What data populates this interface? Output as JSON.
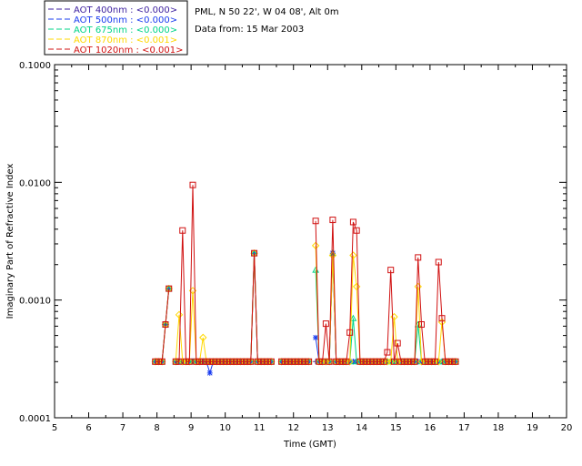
{
  "chart_data": {
    "type": "line",
    "title_lines": [
      "PML, N 50 22', W 04 08', Alt 0m",
      "Data from: 15 Mar 2003"
    ],
    "xlabel": "Time (GMT)",
    "ylabel": "Imaginary Part of Refractive Index",
    "xlim": [
      5,
      20
    ],
    "ylim": [
      0.0001,
      0.1
    ],
    "yscale": "log",
    "x_ticks": [
      5,
      6,
      7,
      8,
      9,
      10,
      11,
      12,
      13,
      14,
      15,
      16,
      17,
      18,
      19,
      20
    ],
    "x_tick_labels": [
      "5",
      "6",
      "7",
      "8",
      "9",
      "10",
      "11",
      "12",
      "13",
      "14",
      "15",
      "16",
      "17",
      "18",
      "19",
      "20"
    ],
    "y_ticks": [
      0.0001,
      0.001,
      0.01,
      0.1
    ],
    "y_tick_labels": [
      "0.0001",
      "0.0010",
      "0.0100",
      "0.1000"
    ],
    "legend": [
      {
        "label": "AOT  400nm : <0.000>",
        "color": "#3b1e9e"
      },
      {
        "label": "AOT  500nm : <0.000>",
        "color": "#1a3cf0"
      },
      {
        "label": "AOT  675nm : <0.000>",
        "color": "#00d488"
      },
      {
        "label": "AOT  870nm : <0.001>",
        "color": "#ffd800"
      },
      {
        "label": "AOT 1020nm : <0.001>",
        "color": "#d01010"
      }
    ],
    "series": [
      {
        "name": "AOT 400nm",
        "color": "#3b1e9e",
        "marker": "plus",
        "x": [
          7.95,
          8.05,
          8.15,
          8.25,
          8.35,
          8.55,
          8.65,
          8.75,
          8.85,
          8.95,
          9.05,
          9.15,
          9.25,
          9.35,
          9.45,
          9.55,
          9.65,
          9.75,
          9.85,
          9.95,
          10.05,
          10.15,
          10.25,
          10.35,
          10.45,
          10.55,
          10.65,
          10.75,
          10.85,
          10.95,
          11.05,
          11.15,
          11.25,
          11.35,
          11.65,
          11.75,
          11.85,
          11.95,
          12.05,
          12.15,
          12.25,
          12.35,
          12.45,
          12.65,
          12.75,
          12.85,
          12.95,
          13.05,
          13.15,
          13.25,
          13.35,
          13.45,
          13.55,
          13.65,
          13.75,
          13.85,
          13.95,
          14.05,
          14.15,
          14.25,
          14.35,
          14.45,
          14.55,
          14.65,
          14.75,
          14.85,
          14.95,
          15.05,
          15.15,
          15.25,
          15.35,
          15.45,
          15.55,
          15.65,
          15.75,
          15.85,
          15.95,
          16.05,
          16.15,
          16.25,
          16.35,
          16.45,
          16.55,
          16.65,
          16.75
        ],
        "y": [
          0.0003,
          0.0003,
          0.0003,
          0.00062,
          0.00125,
          0.0003,
          0.0003,
          0.0003,
          0.0003,
          0.0003,
          0.0003,
          0.0003,
          0.0003,
          0.0003,
          0.0003,
          0.0003,
          0.0003,
          0.0003,
          0.0003,
          0.0003,
          0.0003,
          0.0003,
          0.0003,
          0.0003,
          0.0003,
          0.0003,
          0.0003,
          0.0003,
          0.0025,
          0.0003,
          0.0003,
          0.0003,
          0.0003,
          0.0003,
          0.0003,
          0.0003,
          0.0003,
          0.0003,
          0.0003,
          0.0003,
          0.0003,
          0.0003,
          0.0003,
          0.0003,
          0.0003,
          0.0003,
          0.0003,
          0.0003,
          0.0025,
          0.0003,
          0.0003,
          0.0003,
          0.0003,
          0.0003,
          0.0003,
          0.0003,
          0.0003,
          0.0003,
          0.0003,
          0.0003,
          0.0003,
          0.0003,
          0.0003,
          0.0003,
          0.0003,
          0.0003,
          0.0003,
          0.0003,
          0.0003,
          0.0003,
          0.0003,
          0.0003,
          0.0003,
          0.0003,
          0.0003,
          0.0003,
          0.0003,
          0.0003,
          0.0003,
          0.0003,
          0.0003,
          0.0003,
          0.0003,
          0.0003,
          0.0003
        ]
      },
      {
        "name": "AOT 500nm",
        "color": "#1a3cf0",
        "marker": "star",
        "x": [
          7.95,
          8.05,
          8.15,
          8.25,
          8.35,
          8.55,
          8.65,
          8.75,
          8.85,
          8.95,
          9.05,
          9.15,
          9.25,
          9.35,
          9.45,
          9.55,
          9.65,
          9.75,
          9.85,
          9.95,
          10.05,
          10.15,
          10.25,
          10.35,
          10.45,
          10.55,
          10.65,
          10.75,
          10.85,
          10.95,
          11.05,
          11.15,
          11.25,
          11.35,
          11.65,
          11.75,
          11.85,
          11.95,
          12.05,
          12.15,
          12.25,
          12.35,
          12.45,
          12.65,
          12.75,
          12.85,
          12.95,
          13.05,
          13.15,
          13.25,
          13.35,
          13.45,
          13.55,
          13.65,
          13.75,
          13.85,
          13.95,
          14.05,
          14.15,
          14.25,
          14.35,
          14.45,
          14.55,
          14.65,
          14.75,
          14.85,
          14.95,
          15.05,
          15.15,
          15.25,
          15.35,
          15.45,
          15.55,
          15.65,
          15.75,
          15.85,
          15.95,
          16.05,
          16.15,
          16.25,
          16.35,
          16.45,
          16.55,
          16.65,
          16.75
        ],
        "y": [
          0.0003,
          0.0003,
          0.0003,
          0.00062,
          0.00125,
          0.0003,
          0.0003,
          0.0003,
          0.0003,
          0.0003,
          0.0003,
          0.0003,
          0.0003,
          0.0003,
          0.0003,
          0.00024,
          0.0003,
          0.0003,
          0.0003,
          0.0003,
          0.0003,
          0.0003,
          0.0003,
          0.0003,
          0.0003,
          0.0003,
          0.0003,
          0.0003,
          0.0025,
          0.0003,
          0.0003,
          0.0003,
          0.0003,
          0.0003,
          0.0003,
          0.0003,
          0.0003,
          0.0003,
          0.0003,
          0.0003,
          0.0003,
          0.0003,
          0.0003,
          0.00048,
          0.0003,
          0.0003,
          0.0003,
          0.0003,
          0.0025,
          0.0003,
          0.0003,
          0.0003,
          0.0003,
          0.0003,
          0.0003,
          0.0003,
          0.0003,
          0.0003,
          0.0003,
          0.0003,
          0.0003,
          0.0003,
          0.0003,
          0.0003,
          0.0003,
          0.0003,
          0.0003,
          0.0003,
          0.0003,
          0.0003,
          0.0003,
          0.0003,
          0.0003,
          0.0003,
          0.0003,
          0.0003,
          0.0003,
          0.0003,
          0.0003,
          0.0003,
          0.0003,
          0.0003,
          0.0003,
          0.0003,
          0.0003
        ]
      },
      {
        "name": "AOT 675nm",
        "color": "#00d488",
        "marker": "triangle",
        "x": [
          7.95,
          8.05,
          8.15,
          8.25,
          8.35,
          8.55,
          8.65,
          8.75,
          8.85,
          8.95,
          9.05,
          9.15,
          9.25,
          9.35,
          9.45,
          9.55,
          9.65,
          9.75,
          9.85,
          9.95,
          10.05,
          10.15,
          10.25,
          10.35,
          10.45,
          10.55,
          10.65,
          10.75,
          10.85,
          10.95,
          11.05,
          11.15,
          11.25,
          11.35,
          11.65,
          11.75,
          11.85,
          11.95,
          12.05,
          12.15,
          12.25,
          12.35,
          12.45,
          12.65,
          12.75,
          12.85,
          12.95,
          13.05,
          13.15,
          13.25,
          13.35,
          13.45,
          13.55,
          13.65,
          13.75,
          13.85,
          13.95,
          14.05,
          14.15,
          14.25,
          14.35,
          14.45,
          14.55,
          14.65,
          14.75,
          14.85,
          14.95,
          15.05,
          15.15,
          15.25,
          15.35,
          15.45,
          15.55,
          15.65,
          15.75,
          15.85,
          15.95,
          16.05,
          16.15,
          16.25,
          16.35,
          16.45,
          16.55,
          16.65,
          16.75
        ],
        "y": [
          0.0003,
          0.0003,
          0.0003,
          0.00062,
          0.00125,
          0.0003,
          0.0003,
          0.0003,
          0.0003,
          0.0003,
          0.0003,
          0.0003,
          0.0003,
          0.0003,
          0.0003,
          0.0003,
          0.0003,
          0.0003,
          0.0003,
          0.0003,
          0.0003,
          0.0003,
          0.0003,
          0.0003,
          0.0003,
          0.0003,
          0.0003,
          0.0003,
          0.0025,
          0.0003,
          0.0003,
          0.0003,
          0.0003,
          0.0003,
          0.0003,
          0.0003,
          0.0003,
          0.0003,
          0.0003,
          0.0003,
          0.0003,
          0.0003,
          0.0003,
          0.0018,
          0.0003,
          0.0003,
          0.0003,
          0.0003,
          0.0025,
          0.0003,
          0.0003,
          0.0003,
          0.0003,
          0.0003,
          0.0007,
          0.0003,
          0.0003,
          0.0003,
          0.0003,
          0.0003,
          0.0003,
          0.0003,
          0.0003,
          0.0003,
          0.0003,
          0.0003,
          0.0003,
          0.0003,
          0.0003,
          0.0003,
          0.0003,
          0.0003,
          0.0003,
          0.00062,
          0.0003,
          0.0003,
          0.0003,
          0.0003,
          0.0003,
          0.0003,
          0.0003,
          0.0003,
          0.0003,
          0.0003,
          0.0003
        ]
      },
      {
        "name": "AOT 870nm",
        "color": "#ffd800",
        "marker": "diamond",
        "x": [
          7.95,
          8.05,
          8.15,
          8.25,
          8.35,
          8.55,
          8.65,
          8.75,
          8.85,
          8.95,
          9.05,
          9.15,
          9.25,
          9.35,
          9.45,
          9.55,
          9.65,
          9.75,
          9.85,
          9.95,
          10.05,
          10.15,
          10.25,
          10.35,
          10.45,
          10.55,
          10.65,
          10.75,
          10.85,
          10.95,
          11.05,
          11.15,
          11.25,
          11.35,
          11.65,
          11.75,
          11.85,
          11.95,
          12.05,
          12.15,
          12.25,
          12.35,
          12.45,
          12.65,
          12.75,
          12.85,
          12.95,
          13.05,
          13.15,
          13.25,
          13.35,
          13.45,
          13.55,
          13.65,
          13.75,
          13.85,
          13.95,
          14.05,
          14.15,
          14.25,
          14.35,
          14.45,
          14.55,
          14.65,
          14.75,
          14.85,
          14.95,
          15.05,
          15.15,
          15.25,
          15.35,
          15.45,
          15.55,
          15.65,
          15.75,
          15.85,
          15.95,
          16.05,
          16.15,
          16.25,
          16.35,
          16.45,
          16.55,
          16.65,
          16.75
        ],
        "y": [
          0.0003,
          0.0003,
          0.0003,
          0.00062,
          0.00125,
          0.0003,
          0.00075,
          0.0003,
          0.0003,
          0.0003,
          0.0012,
          0.0003,
          0.0003,
          0.00048,
          0.0003,
          0.0003,
          0.0003,
          0.0003,
          0.0003,
          0.0003,
          0.0003,
          0.0003,
          0.0003,
          0.0003,
          0.0003,
          0.0003,
          0.0003,
          0.0003,
          0.0025,
          0.0003,
          0.0003,
          0.0003,
          0.0003,
          0.0003,
          0.0003,
          0.0003,
          0.0003,
          0.0003,
          0.0003,
          0.0003,
          0.0003,
          0.0003,
          0.0003,
          0.0029,
          0.0003,
          0.0003,
          0.0003,
          0.0003,
          0.0024,
          0.0003,
          0.0003,
          0.0003,
          0.0003,
          0.0003,
          0.0024,
          0.0013,
          0.0003,
          0.0003,
          0.0003,
          0.0003,
          0.0003,
          0.0003,
          0.0003,
          0.0003,
          0.0003,
          0.0003,
          0.00072,
          0.0003,
          0.0003,
          0.0003,
          0.0003,
          0.0003,
          0.0003,
          0.0013,
          0.0003,
          0.0003,
          0.0003,
          0.0003,
          0.0003,
          0.0003,
          0.00065,
          0.0003,
          0.0003,
          0.0003,
          0.0003
        ]
      },
      {
        "name": "AOT 1020nm",
        "color": "#d01010",
        "marker": "square",
        "x": [
          7.95,
          8.05,
          8.15,
          8.25,
          8.35,
          8.55,
          8.65,
          8.75,
          8.85,
          8.95,
          9.05,
          9.15,
          9.25,
          9.35,
          9.45,
          9.55,
          9.65,
          9.75,
          9.85,
          9.95,
          10.05,
          10.15,
          10.25,
          10.35,
          10.45,
          10.55,
          10.65,
          10.75,
          10.85,
          10.95,
          11.05,
          11.15,
          11.25,
          11.35,
          11.65,
          11.75,
          11.85,
          11.95,
          12.05,
          12.15,
          12.25,
          12.35,
          12.45,
          12.65,
          12.75,
          12.85,
          12.95,
          13.05,
          13.15,
          13.25,
          13.35,
          13.45,
          13.55,
          13.65,
          13.75,
          13.85,
          13.95,
          14.05,
          14.15,
          14.25,
          14.35,
          14.45,
          14.55,
          14.65,
          14.75,
          14.85,
          14.95,
          15.05,
          15.15,
          15.25,
          15.35,
          15.45,
          15.55,
          15.65,
          15.75,
          15.85,
          15.95,
          16.05,
          16.15,
          16.25,
          16.35,
          16.45,
          16.55,
          16.65,
          16.75
        ],
        "y": [
          0.0003,
          0.0003,
          0.0003,
          0.00062,
          0.00125,
          0.0003,
          0.0003,
          0.0039,
          0.0003,
          0.0003,
          0.0095,
          0.0003,
          0.0003,
          0.0003,
          0.0003,
          0.0003,
          0.0003,
          0.0003,
          0.0003,
          0.0003,
          0.0003,
          0.0003,
          0.0003,
          0.0003,
          0.0003,
          0.0003,
          0.0003,
          0.0003,
          0.0025,
          0.0003,
          0.0003,
          0.0003,
          0.0003,
          0.0003,
          0.0003,
          0.0003,
          0.0003,
          0.0003,
          0.0003,
          0.0003,
          0.0003,
          0.0003,
          0.0003,
          0.0047,
          0.0003,
          0.0003,
          0.00063,
          0.0003,
          0.0048,
          0.0003,
          0.0003,
          0.0003,
          0.0003,
          0.00053,
          0.0046,
          0.0039,
          0.0003,
          0.0003,
          0.0003,
          0.0003,
          0.0003,
          0.0003,
          0.0003,
          0.0003,
          0.00036,
          0.0018,
          0.0003,
          0.00043,
          0.0003,
          0.0003,
          0.0003,
          0.0003,
          0.0003,
          0.0023,
          0.00062,
          0.0003,
          0.0003,
          0.0003,
          0.0003,
          0.0021,
          0.0007,
          0.0003,
          0.0003,
          0.0003,
          0.0003
        ]
      }
    ]
  }
}
